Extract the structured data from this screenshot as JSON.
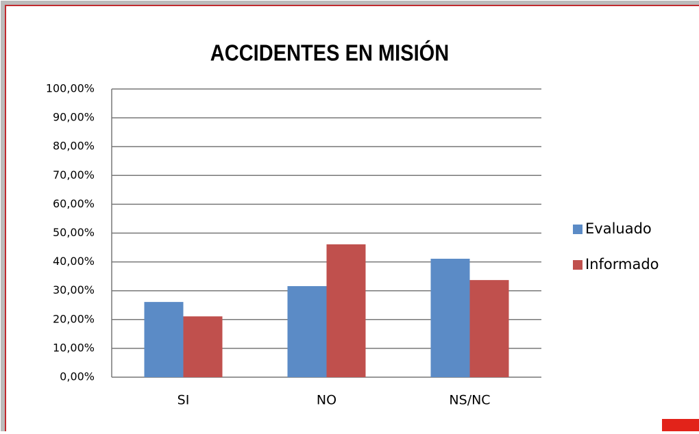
{
  "chart_data": {
    "type": "bar",
    "title": "ACCIDENTES EN MISIÓN",
    "categories": [
      "SI",
      "NO",
      "NS/NC"
    ],
    "series": [
      {
        "name": "Evaluado",
        "color": "#5b8bc6",
        "values": [
          26.1,
          31.6,
          41.1
        ]
      },
      {
        "name": "Informado",
        "color": "#c0504d",
        "values": [
          21.1,
          46.1,
          33.7
        ]
      }
    ],
    "ylim": [
      0,
      100
    ],
    "yticks": [
      {
        "value": 0,
        "label": "0,00%"
      },
      {
        "value": 10,
        "label": "10,00%"
      },
      {
        "value": 20,
        "label": "20,00%"
      },
      {
        "value": 30,
        "label": "30,00%"
      },
      {
        "value": 40,
        "label": "40,00%"
      },
      {
        "value": 50,
        "label": "50,00%"
      },
      {
        "value": 60,
        "label": "60,00%"
      },
      {
        "value": 70,
        "label": "70,00%"
      },
      {
        "value": 80,
        "label": "80,00%"
      },
      {
        "value": 90,
        "label": "90,00%"
      },
      {
        "value": 100,
        "label": "100,00%"
      }
    ],
    "grid": true,
    "legend": "right"
  }
}
